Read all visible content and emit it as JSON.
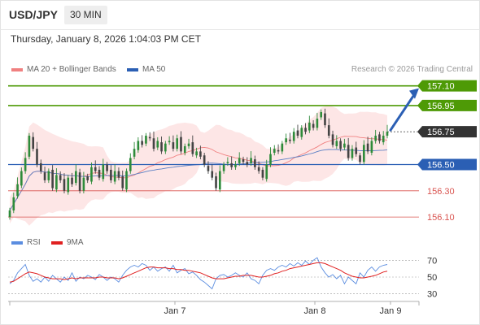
{
  "header": {
    "pair": "USD/JPY",
    "timeframe": "30 MIN"
  },
  "timestamp": "Thursday, January 8, 2026 1:04:03 PM CET",
  "legend": {
    "ma20": "MA 20 + Bollinger Bands",
    "ma50": "MA 50",
    "rsi": "RSI",
    "ma9": "9MA",
    "credit": "Research © 2026 Trading Central"
  },
  "colors": {
    "green": "#4e9a06",
    "blue": "#2b5fb4",
    "red": "#d9534f",
    "dark": "#333333",
    "bull": "#2e8b3a",
    "bear": "#444444",
    "band": "#fde2e2",
    "ma20": "#f08080",
    "ma50": "#5a7fc4",
    "rsi": "#5b8de0",
    "ma9": "#e02020"
  },
  "chart_data": [
    {
      "type": "candlestick",
      "title": "USD/JPY",
      "ylim": [
        156.02,
        157.16
      ],
      "levels": [
        {
          "label": "157.10",
          "value": 157.1,
          "style": "resistance"
        },
        {
          "label": "156.95",
          "value": 156.95,
          "style": "resistance"
        },
        {
          "label": "156.75",
          "value": 156.75,
          "style": "last"
        },
        {
          "label": "156.50",
          "value": 156.5,
          "style": "pivot"
        },
        {
          "label": "156.30",
          "value": 156.3,
          "style": "support"
        },
        {
          "label": "156.10",
          "value": 156.1,
          "style": "support"
        }
      ],
      "x_ticks": [
        "Jan 7",
        "Jan 8",
        "Jan 9"
      ],
      "close": [
        156.15,
        156.25,
        156.35,
        156.45,
        156.55,
        156.72,
        156.62,
        156.5,
        156.45,
        156.38,
        156.45,
        156.32,
        156.42,
        156.38,
        156.3,
        156.4,
        156.35,
        156.45,
        156.3,
        156.4,
        156.38,
        156.48,
        156.45,
        156.4,
        156.5,
        156.45,
        156.38,
        156.45,
        156.4,
        156.32,
        156.45,
        156.55,
        156.62,
        156.68,
        156.65,
        156.72,
        156.7,
        156.62,
        156.68,
        156.6,
        156.66,
        156.68,
        156.62,
        156.7,
        156.6,
        156.64,
        156.66,
        156.58,
        156.6,
        156.56,
        156.5,
        156.45,
        156.4,
        156.32,
        156.45,
        156.5,
        156.52,
        156.48,
        156.5,
        156.55,
        156.52,
        156.5,
        156.55,
        156.48,
        156.45,
        156.4,
        156.5,
        156.58,
        156.62,
        156.6,
        156.66,
        156.7,
        156.68,
        156.75,
        156.72,
        156.78,
        156.75,
        156.82,
        156.78,
        156.85,
        156.9,
        156.8,
        156.72,
        156.65,
        156.68,
        156.62,
        156.66,
        156.55,
        156.62,
        156.58,
        156.52,
        156.65,
        156.6,
        156.68,
        156.72,
        156.68,
        156.72,
        156.75
      ],
      "annotation": "projected path toward 157.10"
    },
    {
      "type": "line",
      "title": "RSI",
      "ylim": [
        22,
        78
      ],
      "y_ticks": [
        70,
        50,
        30
      ],
      "series": [
        {
          "name": "RSI",
          "values": [
            42,
            46,
            55,
            60,
            65,
            52,
            45,
            48,
            44,
            50,
            45,
            52,
            48,
            44,
            50,
            46,
            55,
            45,
            50,
            48,
            52,
            50,
            47,
            53,
            50,
            46,
            50,
            48,
            44,
            52,
            58,
            62,
            64,
            62,
            66,
            64,
            58,
            62,
            57,
            60,
            62,
            57,
            64,
            55,
            58,
            60,
            54,
            56,
            52,
            47,
            44,
            40,
            36,
            48,
            52,
            53,
            50,
            52,
            55,
            52,
            50,
            55,
            48,
            46,
            42,
            52,
            58,
            60,
            58,
            62,
            64,
            62,
            66,
            63,
            67,
            64,
            69,
            65,
            70,
            73,
            62,
            55,
            50,
            53,
            48,
            52,
            42,
            50,
            46,
            42,
            55,
            50,
            58,
            62,
            57,
            62,
            64,
            65
          ]
        },
        {
          "name": "9MA",
          "values": [
            44,
            45,
            48,
            51,
            54,
            56,
            55,
            54,
            52,
            50,
            49,
            48,
            48,
            48,
            47,
            48,
            49,
            48,
            49,
            49,
            49,
            49,
            49,
            50,
            50,
            49,
            49,
            49,
            48,
            49,
            51,
            53,
            55,
            57,
            59,
            61,
            62,
            62,
            61,
            61,
            61,
            60,
            60,
            59,
            59,
            58,
            58,
            57,
            56,
            55,
            53,
            51,
            49,
            48,
            48,
            48,
            49,
            50,
            51,
            51,
            52,
            52,
            52,
            51,
            50,
            50,
            51,
            52,
            54,
            55,
            57,
            58,
            60,
            61,
            62,
            63,
            64,
            65,
            66,
            67,
            67,
            66,
            64,
            62,
            60,
            58,
            55,
            53,
            51,
            50,
            49,
            49,
            50,
            51,
            52,
            54,
            56,
            57
          ]
        }
      ]
    }
  ]
}
